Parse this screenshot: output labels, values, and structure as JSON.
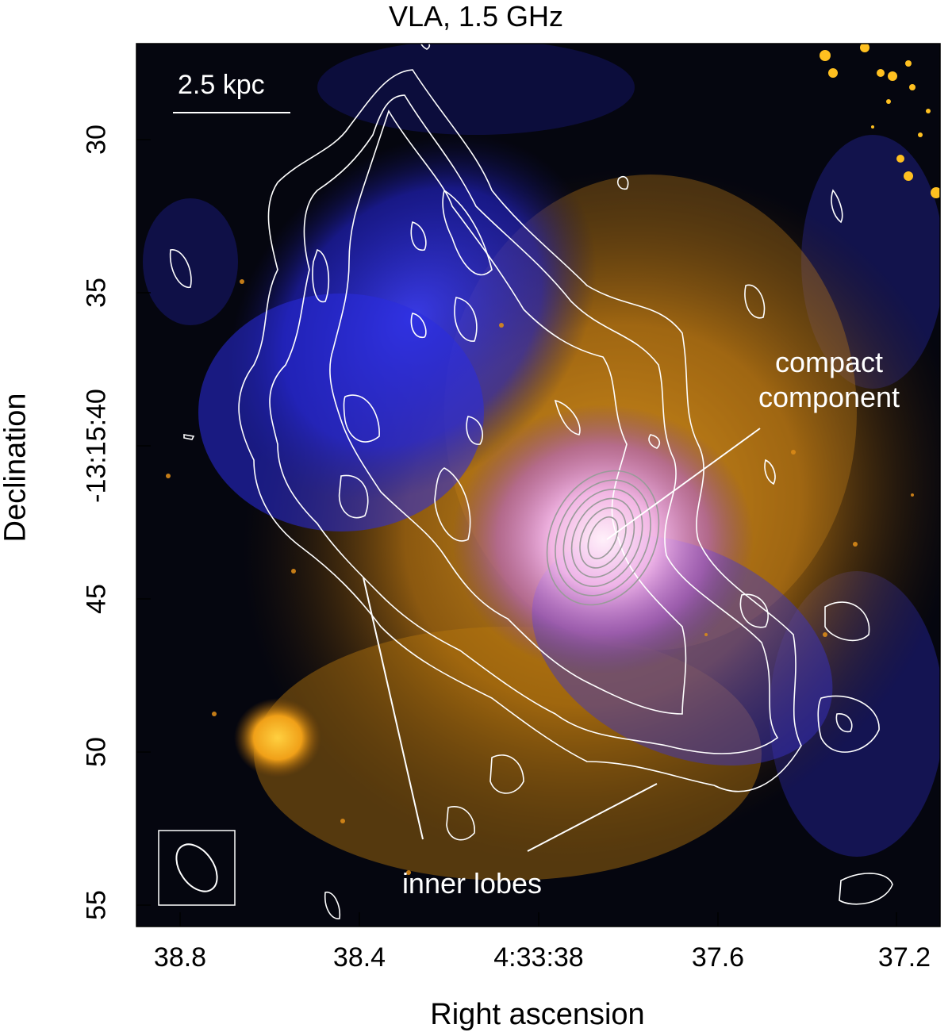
{
  "figure": {
    "title": "VLA, 1.5 GHz",
    "xlabel": "Right ascension",
    "ylabel": "Declination",
    "xticks": [
      "38.8",
      "38.4",
      "4:33:38",
      "37.6",
      "37.2"
    ],
    "yticks": [
      "30",
      "35",
      "-13:15:40",
      "45",
      "50",
      "55"
    ],
    "scalebar": "2.5 kpc",
    "annotations": {
      "compact_line1": "compact",
      "compact_line2": "component",
      "inner_lobes": "inner lobes"
    },
    "colors": {
      "background": "#05060f",
      "radio_blue": "#2a2fe0",
      "optical_orange": "#e89a18",
      "core_pink": "#f6c8f2",
      "contour_outer": "#ffffff",
      "contour_inner": "#a0a0a0"
    }
  }
}
